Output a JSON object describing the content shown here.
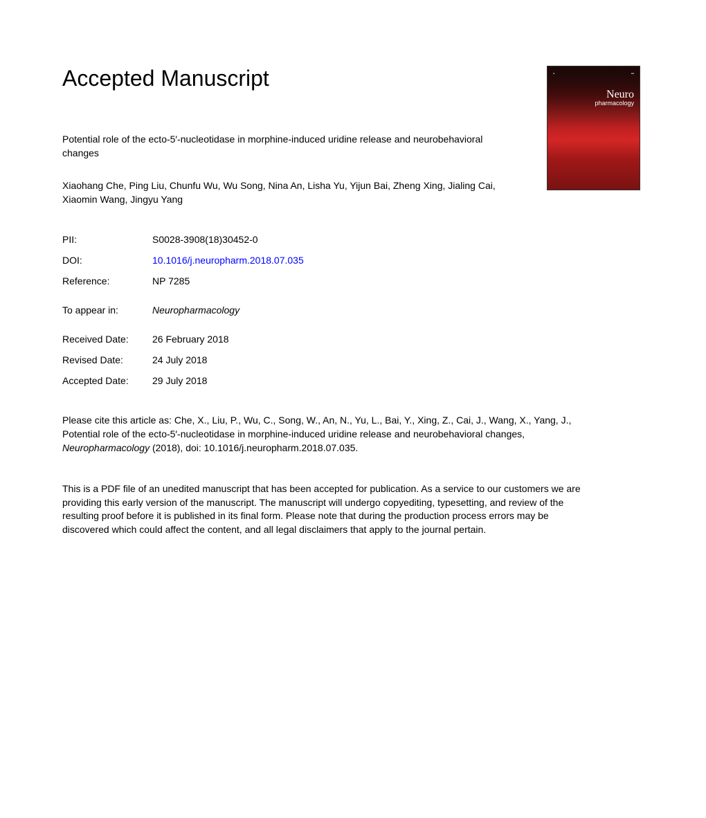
{
  "heading": "Accepted Manuscript",
  "article": {
    "title": "Potential role of the ecto-5′-nucleotidase in morphine-induced uridine release and neurobehavioral changes",
    "authors": "Xiaohang Che, Ping Liu, Chunfu Wu, Wu Song, Nina An, Lisha Yu, Yijun Bai, Zheng Xing, Jialing Cai, Xiaomin Wang, Jingyu Yang"
  },
  "metadata": {
    "pii_label": "PII:",
    "pii_value": "S0028-3908(18)30452-0",
    "doi_label": "DOI:",
    "doi_value": "10.1016/j.neuropharm.2018.07.035",
    "reference_label": "Reference:",
    "reference_value": "NP 7285",
    "appear_label": "To appear in:",
    "appear_value": "Neuropharmacology",
    "received_label": "Received Date:",
    "received_value": "26 February 2018",
    "revised_label": "Revised Date:",
    "revised_value": "24 July 2018",
    "accepted_label": "Accepted Date:",
    "accepted_value": "29 July 2018"
  },
  "citation": {
    "prefix": "Please cite this article as: Che, X., Liu, P., Wu, C., Song, W., An, N., Yu, L., Bai, Y., Xing, Z., Cai, J., Wang, X., Yang, J., Potential role of the ecto-5′-nucleotidase in morphine-induced uridine release and neurobehavioral changes, ",
    "journal": "Neuropharmacology",
    "suffix": " (2018), doi: 10.1016/j.neuropharm.2018.07.035."
  },
  "disclaimer": "This is a PDF file of an unedited manuscript that has been accepted for publication. As a service to our customers we are providing this early version of the manuscript. The manuscript will undergo copyediting, typesetting, and review of the resulting proof before it is published in its final form. Please note that during the production process errors may be discovered which could affect the content, and all legal disclaimers that apply to the journal pertain.",
  "cover": {
    "journal_name": "Neuro",
    "journal_sub": "pharmacology"
  },
  "colors": {
    "text": "#000000",
    "link": "#0000ff",
    "background": "#ffffff"
  }
}
